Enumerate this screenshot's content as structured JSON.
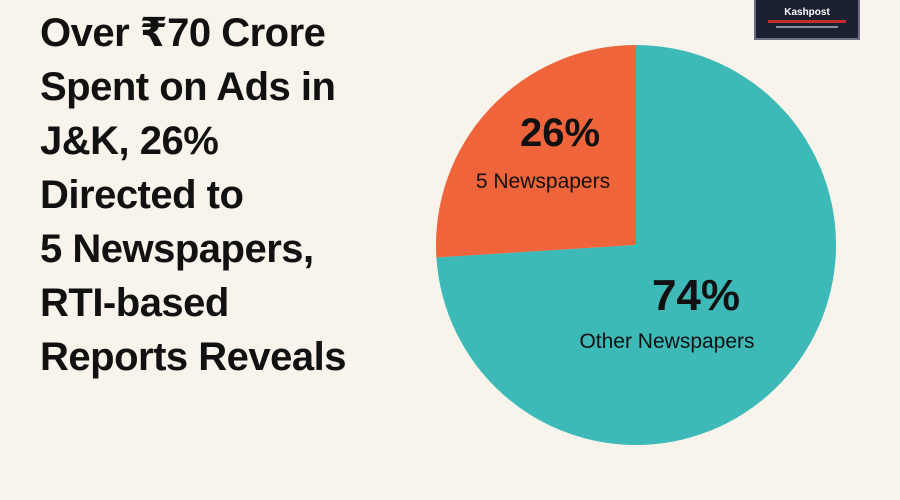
{
  "headline": {
    "lines": [
      "Over ₹70 Crore",
      "Spent on Ads in",
      "J&K, 26%",
      "Directed to",
      "5 Newspapers,",
      "RTI-based",
      "Reports Reveals"
    ]
  },
  "logo": {
    "text": "Kashpost"
  },
  "chart_data": {
    "type": "pie",
    "title": "",
    "start_angle_deg": 0,
    "direction": "counterclockwise",
    "slices": [
      {
        "label": "5 Newspapers",
        "value": 26,
        "value_label": "26%",
        "color": "#ef643a"
      },
      {
        "label": "Other Newspapers",
        "value": 74,
        "value_label": "74%",
        "color": "#3db9b8"
      }
    ],
    "legend": "none"
  }
}
